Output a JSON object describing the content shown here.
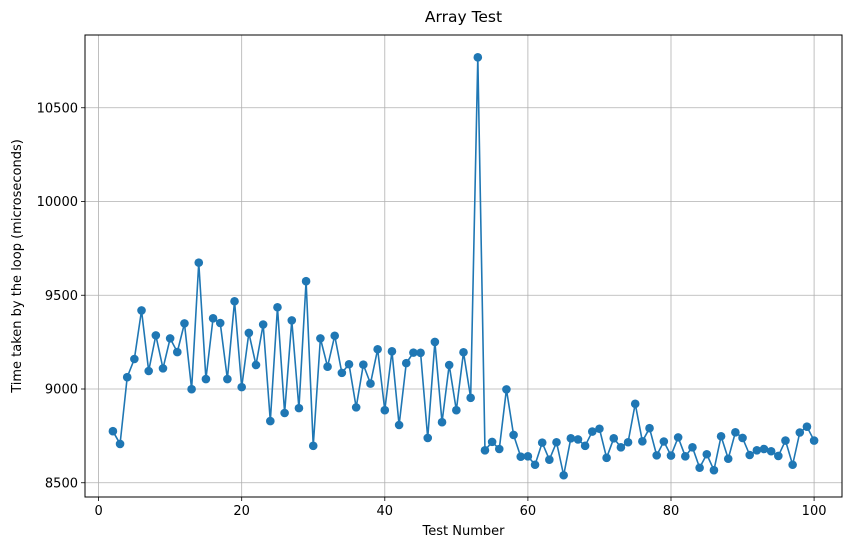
{
  "chart_data": {
    "type": "line",
    "title": "Array Test",
    "xlabel": "Test Number",
    "ylabel": "Time taken by the loop (microseconds)",
    "xlim": [
      -1.9,
      103.9
    ],
    "ylim": [
      8424,
      10888
    ],
    "x_ticks": [
      0,
      20,
      40,
      60,
      80,
      100
    ],
    "x_tick_labels": [
      "0",
      "20",
      "40",
      "60",
      "80",
      "100"
    ],
    "y_ticks": [
      8500,
      9000,
      9500,
      10000,
      10500
    ],
    "y_tick_labels": [
      "8500",
      "9000",
      "9500",
      "10000",
      "10500"
    ],
    "grid": true,
    "markers": true,
    "colors": {
      "series": "#1f77b4",
      "grid": "#b0b0b0",
      "axis": "#000000"
    },
    "series": [
      {
        "x": [
          2,
          3,
          4,
          5,
          6,
          7,
          8,
          9,
          10,
          11,
          12,
          13,
          14,
          15,
          16,
          17,
          18,
          19,
          20,
          21,
          22,
          23,
          24,
          25,
          26,
          27,
          28,
          29,
          30,
          31,
          32,
          33,
          34,
          35,
          36,
          37,
          38,
          39,
          40,
          41,
          42,
          43,
          44,
          45,
          46,
          47,
          48,
          49,
          50,
          51,
          52,
          53,
          54,
          55,
          56,
          57,
          58,
          59,
          60,
          61,
          62,
          63,
          64,
          65,
          66,
          67,
          68,
          69,
          70,
          71,
          72,
          73,
          74,
          75,
          76,
          77,
          78,
          79,
          80,
          81,
          82,
          83,
          84,
          85,
          86,
          87,
          88,
          89,
          90,
          91,
          92,
          93,
          94,
          95,
          96,
          97,
          98,
          99,
          100
        ],
        "y": [
          8775,
          8707,
          9063,
          9160,
          9419,
          9096,
          9286,
          9110,
          9270,
          9197,
          9350,
          8999,
          9674,
          9053,
          9377,
          9352,
          9053,
          9468,
          9010,
          9299,
          9128,
          9344,
          8829,
          9436,
          8872,
          9366,
          8898,
          9575,
          8697,
          9270,
          9119,
          9284,
          9086,
          9132,
          8902,
          9130,
          9029,
          9212,
          8887,
          9201,
          8808,
          9138,
          9194,
          9193,
          8739,
          9251,
          8823,
          9128,
          8887,
          9196,
          8953,
          10769,
          8673,
          8718,
          8680,
          8998,
          8755,
          8639,
          8641,
          8596,
          8714,
          8623,
          8716,
          8540,
          8737,
          8731,
          8697,
          8773,
          8788,
          8633,
          8737,
          8689,
          8716,
          8921,
          8721,
          8791,
          8646,
          8720,
          8645,
          8742,
          8641,
          8689,
          8580,
          8652,
          8567,
          8748,
          8628,
          8769,
          8739,
          8648,
          8673,
          8680,
          8668,
          8643,
          8725,
          8596,
          8768,
          8799,
          8725
        ]
      }
    ]
  }
}
